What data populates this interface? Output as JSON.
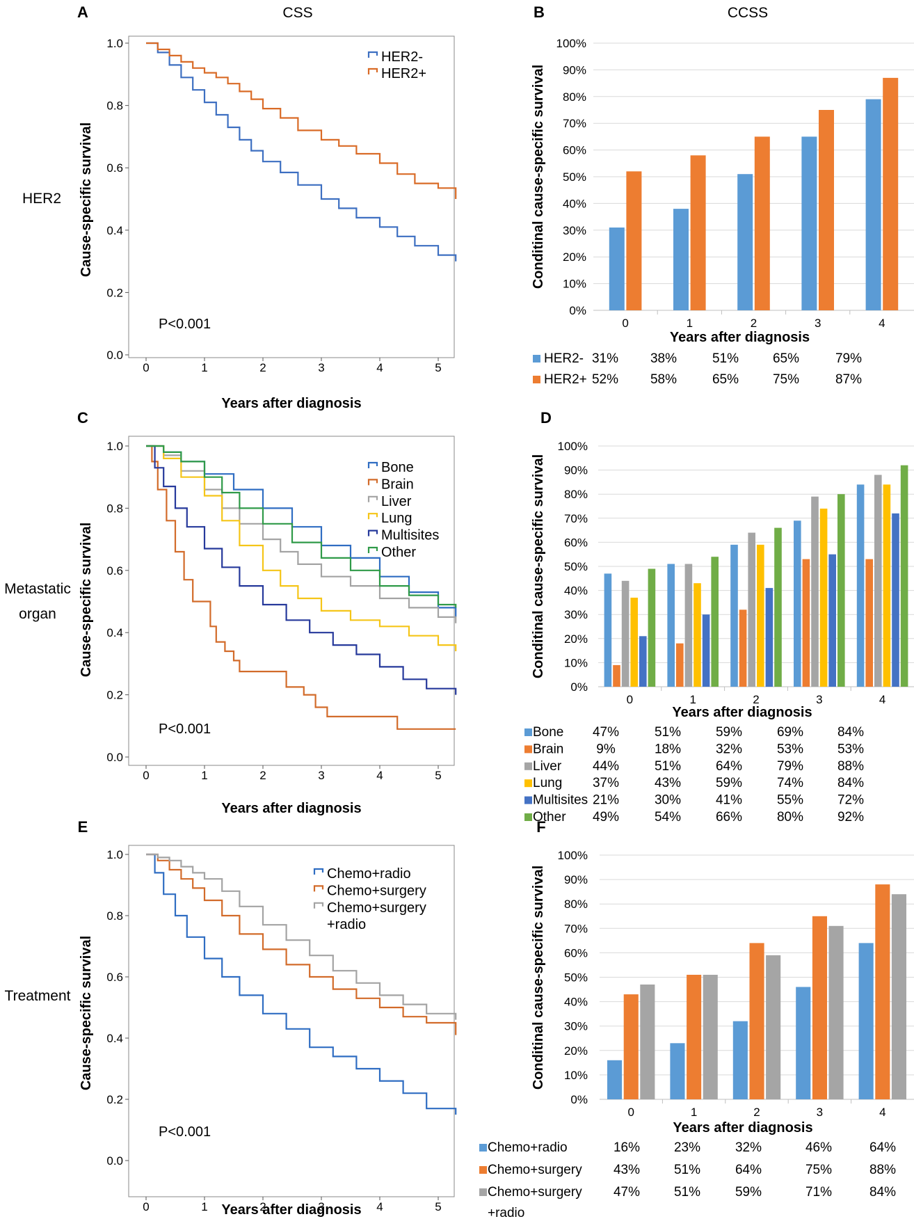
{
  "colors": {
    "her2_neg": "#3d6fc1",
    "her2_pos": "#d96b27",
    "bone": "#2f6dc2",
    "brain": "#d26b2a",
    "liver": "#a3a3a3",
    "lung": "#f5c518",
    "multisites": "#26399b",
    "other": "#2f9a48",
    "chemo_radio": "#2f6dc2",
    "chemo_surgery": "#d26b2a",
    "chemo_surgery_radio": "#a3a3a3",
    "bar_blue": "#5b9bd5",
    "bar_orange": "#ed7d31",
    "bar_gray": "#a5a5a5",
    "bar_yellow": "#ffc000",
    "bar_darkblue": "#4472c4",
    "bar_green": "#70ad47",
    "axis": "#888888",
    "grid": "#d9d9d9"
  },
  "figure": {
    "col_title_left": "CSS",
    "col_title_right": "CCSS",
    "row_labels": [
      {
        "lines": [
          "HER2"
        ]
      },
      {
        "lines": [
          "Metastatic",
          "organ"
        ]
      },
      {
        "lines": [
          "Treatment"
        ]
      }
    ]
  },
  "km_panels": [
    {
      "letter": "A",
      "ylabel": "Cause-specific survival",
      "xlabel": "Years after diagnosis",
      "pvalue": "P<0.001",
      "xticks": [
        "0",
        "1",
        "2",
        "3",
        "4",
        "5"
      ],
      "yticks": [
        "0.0",
        "0.2",
        "0.4",
        "0.6",
        "0.8",
        "1.0"
      ],
      "legend": [
        "HER2-",
        "HER2+"
      ],
      "chart_data": {
        "type": "line",
        "xlim": [
          0,
          5.3
        ],
        "ylim": [
          0,
          1
        ],
        "series": [
          {
            "name": "HER2-",
            "color_key": "her2_neg",
            "x": [
              0,
              0.2,
              0.4,
              0.6,
              0.8,
              1.0,
              1.2,
              1.4,
              1.6,
              1.8,
              2.0,
              2.3,
              2.6,
              3.0,
              3.3,
              3.6,
              4.0,
              4.3,
              4.6,
              5.0,
              5.3
            ],
            "y": [
              1.0,
              0.97,
              0.93,
              0.89,
              0.85,
              0.81,
              0.77,
              0.73,
              0.69,
              0.655,
              0.62,
              0.585,
              0.545,
              0.5,
              0.47,
              0.44,
              0.41,
              0.38,
              0.35,
              0.32,
              0.3
            ]
          },
          {
            "name": "HER2+",
            "color_key": "her2_pos",
            "x": [
              0,
              0.2,
              0.4,
              0.6,
              0.8,
              1.0,
              1.2,
              1.4,
              1.6,
              1.8,
              2.0,
              2.3,
              2.6,
              3.0,
              3.3,
              3.6,
              4.0,
              4.3,
              4.6,
              5.0,
              5.3
            ],
            "y": [
              1.0,
              0.98,
              0.96,
              0.94,
              0.92,
              0.905,
              0.89,
              0.87,
              0.845,
              0.82,
              0.79,
              0.76,
              0.72,
              0.69,
              0.67,
              0.645,
              0.615,
              0.58,
              0.55,
              0.535,
              0.5
            ]
          }
        ]
      }
    },
    {
      "letter": "C",
      "ylabel": "Cause-specific survival",
      "xlabel": "Years after diagnosis",
      "pvalue": "P<0.001",
      "xticks": [
        "0",
        "1",
        "2",
        "3",
        "4",
        "5"
      ],
      "yticks": [
        "0.0",
        "0.2",
        "0.4",
        "0.6",
        "0.8",
        "1.0"
      ],
      "legend": [
        "Bone",
        "Brain",
        "Liver",
        "Lung",
        "Multisites",
        "Other"
      ],
      "chart_data": {
        "type": "line",
        "xlim": [
          0,
          5.3
        ],
        "ylim": [
          0,
          1
        ],
        "series": [
          {
            "name": "Bone",
            "color_key": "bone",
            "x": [
              0,
              0.3,
              0.6,
              1.0,
              1.5,
              2.0,
              2.5,
              3.0,
              3.5,
              4.0,
              4.5,
              5.0,
              5.3
            ],
            "y": [
              1.0,
              0.98,
              0.95,
              0.91,
              0.86,
              0.8,
              0.74,
              0.68,
              0.64,
              0.58,
              0.53,
              0.48,
              0.45
            ]
          },
          {
            "name": "Brain",
            "color_key": "brain",
            "x": [
              0,
              0.1,
              0.2,
              0.35,
              0.5,
              0.65,
              0.8,
              1.0,
              1.1,
              1.2,
              1.35,
              1.5,
              1.6,
              2.4,
              2.7,
              2.9,
              3.1,
              4.3,
              5.3
            ],
            "y": [
              1.0,
              0.95,
              0.86,
              0.76,
              0.66,
              0.57,
              0.5,
              0.5,
              0.42,
              0.37,
              0.34,
              0.31,
              0.275,
              0.225,
              0.2,
              0.16,
              0.13,
              0.09,
              0.09
            ]
          },
          {
            "name": "Liver",
            "color_key": "liver",
            "x": [
              0,
              0.3,
              0.6,
              1.0,
              1.3,
              1.6,
              2.0,
              2.3,
              2.6,
              3.0,
              3.5,
              4.0,
              4.5,
              5.0,
              5.3
            ],
            "y": [
              1.0,
              0.97,
              0.92,
              0.86,
              0.8,
              0.75,
              0.7,
              0.66,
              0.62,
              0.58,
              0.55,
              0.51,
              0.48,
              0.45,
              0.43
            ]
          },
          {
            "name": "Lung",
            "color_key": "lung",
            "x": [
              0,
              0.3,
              0.6,
              1.0,
              1.3,
              1.6,
              2.0,
              2.3,
              2.6,
              3.0,
              3.5,
              4.0,
              4.5,
              5.0,
              5.3
            ],
            "y": [
              1.0,
              0.96,
              0.9,
              0.84,
              0.76,
              0.68,
              0.6,
              0.55,
              0.51,
              0.47,
              0.44,
              0.42,
              0.39,
              0.36,
              0.34
            ]
          },
          {
            "name": "Multisites",
            "color_key": "multisites",
            "x": [
              0,
              0.15,
              0.3,
              0.5,
              0.7,
              1.0,
              1.3,
              1.6,
              2.0,
              2.4,
              2.8,
              3.2,
              3.6,
              4.0,
              4.4,
              4.8,
              5.3
            ],
            "y": [
              1.0,
              0.93,
              0.87,
              0.8,
              0.74,
              0.67,
              0.61,
              0.55,
              0.49,
              0.44,
              0.4,
              0.36,
              0.33,
              0.29,
              0.25,
              0.22,
              0.2
            ]
          },
          {
            "name": "Other",
            "color_key": "other",
            "x": [
              0,
              0.3,
              0.6,
              1.0,
              1.3,
              1.6,
              2.0,
              2.5,
              3.0,
              3.5,
              4.0,
              4.5,
              5.0,
              5.3
            ],
            "y": [
              1.0,
              0.98,
              0.95,
              0.9,
              0.85,
              0.8,
              0.75,
              0.69,
              0.64,
              0.6,
              0.55,
              0.52,
              0.49,
              0.48
            ]
          }
        ]
      }
    },
    {
      "letter": "E",
      "ylabel": "Cause-specific survival",
      "xlabel": "Years after diagnosis",
      "pvalue": "P<0.001",
      "xticks": [
        "0",
        "1",
        "2",
        "3",
        "4",
        "5"
      ],
      "yticks": [
        "0.0",
        "0.2",
        "0.4",
        "0.6",
        "0.8",
        "1.0"
      ],
      "legend": [
        "Chemo+radio",
        "Chemo+surgery",
        "Chemo+surgery",
        "+radio"
      ],
      "chart_data": {
        "type": "line",
        "xlim": [
          0,
          5.3
        ],
        "ylim": [
          0,
          1
        ],
        "series": [
          {
            "name": "Chemo+radio",
            "color_key": "chemo_radio",
            "x": [
              0,
              0.15,
              0.3,
              0.5,
              0.7,
              1.0,
              1.3,
              1.6,
              2.0,
              2.4,
              2.8,
              3.2,
              3.6,
              4.0,
              4.4,
              4.8,
              5.3
            ],
            "y": [
              1.0,
              0.94,
              0.87,
              0.8,
              0.73,
              0.66,
              0.6,
              0.54,
              0.48,
              0.43,
              0.37,
              0.34,
              0.3,
              0.26,
              0.22,
              0.17,
              0.15
            ]
          },
          {
            "name": "Chemo+surgery",
            "color_key": "chemo_surgery",
            "x": [
              0,
              0.2,
              0.4,
              0.6,
              0.8,
              1.0,
              1.3,
              1.6,
              2.0,
              2.4,
              2.8,
              3.2,
              3.6,
              4.0,
              4.4,
              4.8,
              5.3
            ],
            "y": [
              1.0,
              0.98,
              0.95,
              0.92,
              0.89,
              0.85,
              0.8,
              0.74,
              0.69,
              0.64,
              0.6,
              0.56,
              0.53,
              0.5,
              0.47,
              0.45,
              0.41
            ]
          },
          {
            "name": "Chemo+surgery +radio",
            "color_key": "chemo_surgery_radio",
            "x": [
              0,
              0.2,
              0.4,
              0.6,
              0.8,
              1.0,
              1.3,
              1.6,
              2.0,
              2.4,
              2.8,
              3.2,
              3.6,
              4.0,
              4.4,
              4.8,
              5.3
            ],
            "y": [
              1.0,
              0.99,
              0.98,
              0.96,
              0.94,
              0.92,
              0.88,
              0.83,
              0.77,
              0.72,
              0.67,
              0.62,
              0.58,
              0.54,
              0.51,
              0.48,
              0.46
            ]
          }
        ]
      }
    }
  ],
  "bar_panels": [
    {
      "letter": "B",
      "ylabel": "Conditinal cause-specific survival",
      "xlabel": "Years after diagnosis",
      "yticks": [
        "0%",
        "10%",
        "20%",
        "30%",
        "40%",
        "50%",
        "60%",
        "70%",
        "80%",
        "90%",
        "100%"
      ],
      "chart_data": {
        "type": "bar",
        "categories": [
          "0",
          "1",
          "2",
          "3",
          "4"
        ],
        "ylim": [
          0,
          100
        ],
        "series": [
          {
            "name": "HER2-",
            "color_key": "bar_blue",
            "values": [
              31,
              38,
              51,
              65,
              79
            ],
            "labels": [
              "31%",
              "38%",
              "51%",
              "65%",
              "79%"
            ]
          },
          {
            "name": "HER2+",
            "color_key": "bar_orange",
            "values": [
              52,
              58,
              65,
              75,
              87
            ],
            "labels": [
              "52%",
              "58%",
              "65%",
              "75%",
              "87%"
            ]
          }
        ]
      }
    },
    {
      "letter": "D",
      "ylabel": "Conditinal cause-specific survival",
      "xlabel": "Years after diagnosis",
      "yticks": [
        "0%",
        "10%",
        "20%",
        "30%",
        "40%",
        "50%",
        "60%",
        "70%",
        "80%",
        "90%",
        "100%"
      ],
      "chart_data": {
        "type": "bar",
        "categories": [
          "0",
          "1",
          "2",
          "3",
          "4"
        ],
        "ylim": [
          0,
          100
        ],
        "series": [
          {
            "name": "Bone",
            "color_key": "bar_blue",
            "values": [
              47,
              51,
              59,
              69,
              84
            ],
            "labels": [
              "47%",
              "51%",
              "59%",
              "69%",
              "84%"
            ]
          },
          {
            "name": "Brain",
            "color_key": "bar_orange",
            "values": [
              9,
              18,
              32,
              53,
              53
            ],
            "labels": [
              "9%",
              "18%",
              "32%",
              "53%",
              "53%"
            ]
          },
          {
            "name": "Liver",
            "color_key": "bar_gray",
            "values": [
              44,
              51,
              64,
              79,
              88
            ],
            "labels": [
              "44%",
              "51%",
              "64%",
              "79%",
              "88%"
            ]
          },
          {
            "name": "Lung",
            "color_key": "bar_yellow",
            "values": [
              37,
              43,
              59,
              74,
              84
            ],
            "labels": [
              "37%",
              "43%",
              "59%",
              "74%",
              "84%"
            ]
          },
          {
            "name": "Multisites",
            "color_key": "bar_darkblue",
            "values": [
              21,
              30,
              41,
              55,
              72
            ],
            "labels": [
              "21%",
              "30%",
              "41%",
              "55%",
              "72%"
            ]
          },
          {
            "name": "Other",
            "color_key": "bar_green",
            "values": [
              49,
              54,
              66,
              80,
              92
            ],
            "labels": [
              "49%",
              "54%",
              "66%",
              "80%",
              "92%"
            ]
          }
        ]
      }
    },
    {
      "letter": "F",
      "ylabel": "Conditinal cause-specific survival",
      "xlabel": "Years after diagnosis",
      "yticks": [
        "0%",
        "10%",
        "20%",
        "30%",
        "40%",
        "50%",
        "60%",
        "70%",
        "80%",
        "90%",
        "100%"
      ],
      "chart_data": {
        "type": "bar",
        "categories": [
          "0",
          "1",
          "2",
          "3",
          "4"
        ],
        "ylim": [
          0,
          100
        ],
        "series": [
          {
            "name": "Chemo+radio",
            "name_lines": [
              "Chemo+radio"
            ],
            "color_key": "bar_blue",
            "values": [
              16,
              23,
              32,
              46,
              64
            ],
            "labels": [
              "16%",
              "23%",
              "32%",
              "46%",
              "64%"
            ]
          },
          {
            "name": "Chemo+surgery",
            "name_lines": [
              "Chemo+surgery"
            ],
            "color_key": "bar_orange",
            "values": [
              43,
              51,
              64,
              75,
              88
            ],
            "labels": [
              "43%",
              "51%",
              "64%",
              "75%",
              "88%"
            ]
          },
          {
            "name": "Chemo+surgery +radio",
            "name_lines": [
              "Chemo+surgery",
              "+radio"
            ],
            "color_key": "bar_gray",
            "values": [
              47,
              51,
              59,
              71,
              84
            ],
            "labels": [
              "47%",
              "51%",
              "59%",
              "71%",
              "84%"
            ]
          }
        ]
      }
    }
  ]
}
